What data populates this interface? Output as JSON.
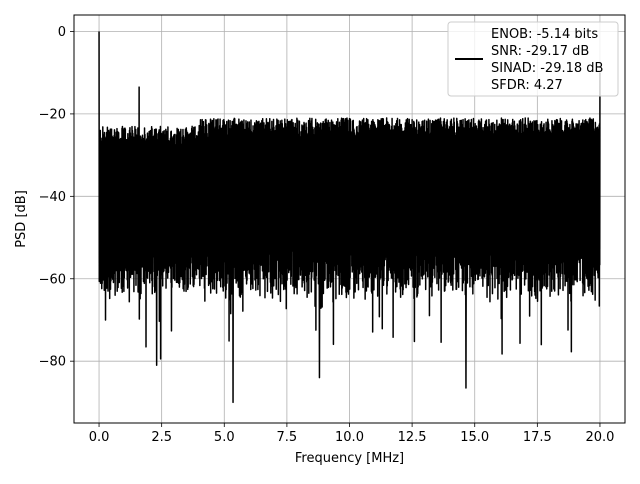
{
  "chart_data": {
    "type": "line",
    "title": "",
    "xlabel": "Frequency [MHz]",
    "ylabel": "PSD [dB]",
    "xlim": [
      -1.0,
      21.0
    ],
    "ylim": [
      -95,
      4
    ],
    "xticks": [
      0.0,
      2.5,
      5.0,
      7.5,
      10.0,
      12.5,
      15.0,
      17.5,
      20.0
    ],
    "xtick_labels": [
      "0.0",
      "2.5",
      "5.0",
      "7.5",
      "10.0",
      "12.5",
      "15.0",
      "17.5",
      "20.0"
    ],
    "yticks": [
      0,
      -20,
      -40,
      -60,
      -80
    ],
    "ytick_labels": [
      "0",
      "−20",
      "−40",
      "−60",
      "−80"
    ],
    "grid": true,
    "legend_position": "top-right",
    "legend_lines": [
      "ENOB: -5.14 bits",
      "SNR: -29.17 dB",
      "SINAD: -29.18 dB",
      "SFDR: 4.27"
    ],
    "series": [
      {
        "color": "#000000",
        "x_range": [
          0.0,
          20.0
        ],
        "noise_band": {
          "upper_dB": -22,
          "lower_dB": -58,
          "min_dip_dB": -90
        },
        "peaks": [
          {
            "x": 0.0,
            "y": 0.0
          },
          {
            "x": 1.6,
            "y": -13.5
          },
          {
            "x": 20.0,
            "y": -10.0
          }
        ],
        "notable_minima": [
          {
            "x": 2.3,
            "y": -81
          },
          {
            "x": 5.35,
            "y": -90
          },
          {
            "x": 8.8,
            "y": -84
          },
          {
            "x": 14.65,
            "y": -86.5
          }
        ]
      }
    ]
  }
}
